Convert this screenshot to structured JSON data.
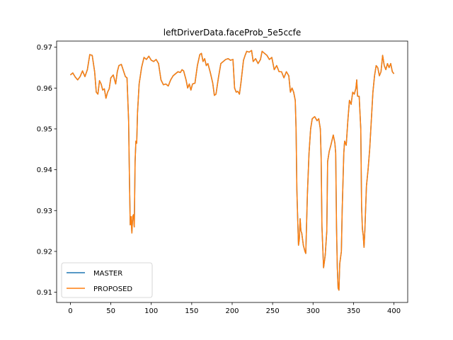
{
  "chart_data": {
    "type": "line",
    "title": "leftDriverData.faceProb_5e5ccfe",
    "xlabel": "",
    "ylabel": "",
    "xlim": [
      -17,
      417
    ],
    "ylim": [
      0.9075,
      0.9715
    ],
    "xticks": [
      0,
      50,
      100,
      150,
      200,
      250,
      300,
      350,
      400
    ],
    "yticks": [
      0.91,
      0.92,
      0.93,
      0.94,
      0.95,
      0.96,
      0.97
    ],
    "grid": false,
    "legend": {
      "position": "lower-left"
    },
    "series": [
      {
        "name": "MASTER",
        "color": "#1f77b4",
        "points": [
          [
            0,
            0.9632
          ],
          [
            3,
            0.9637
          ],
          [
            6,
            0.9627
          ],
          [
            9,
            0.962
          ],
          [
            12,
            0.9628
          ],
          [
            15,
            0.9642
          ],
          [
            18,
            0.9628
          ],
          [
            21,
            0.9645
          ],
          [
            24,
            0.9682
          ],
          [
            27,
            0.968
          ],
          [
            30,
            0.964
          ],
          [
            32,
            0.959
          ],
          [
            34,
            0.9585
          ],
          [
            36,
            0.9618
          ],
          [
            38,
            0.961
          ],
          [
            40,
            0.9595
          ],
          [
            42,
            0.9598
          ],
          [
            44,
            0.9575
          ],
          [
            46,
            0.959
          ],
          [
            48,
            0.9598
          ],
          [
            50,
            0.9625
          ],
          [
            53,
            0.9632
          ],
          [
            56,
            0.961
          ],
          [
            58,
            0.964
          ],
          [
            60,
            0.9655
          ],
          [
            63,
            0.9658
          ],
          [
            66,
            0.964
          ],
          [
            68,
            0.9628
          ],
          [
            70,
            0.9625
          ],
          [
            72,
            0.952
          ],
          [
            73,
            0.938
          ],
          [
            74,
            0.9265
          ],
          [
            75,
            0.9285
          ],
          [
            76,
            0.9245
          ],
          [
            77,
            0.9285
          ],
          [
            78,
            0.929
          ],
          [
            79,
            0.926
          ],
          [
            80,
            0.942
          ],
          [
            81,
            0.947
          ],
          [
            82,
            0.9465
          ],
          [
            83,
            0.954
          ],
          [
            85,
            0.961
          ],
          [
            88,
            0.965
          ],
          [
            91,
            0.9675
          ],
          [
            94,
            0.967
          ],
          [
            97,
            0.9678
          ],
          [
            100,
            0.9668
          ],
          [
            103,
            0.9665
          ],
          [
            106,
            0.967
          ],
          [
            109,
            0.966
          ],
          [
            112,
            0.962
          ],
          [
            115,
            0.9608
          ],
          [
            118,
            0.961
          ],
          [
            121,
            0.9605
          ],
          [
            124,
            0.962
          ],
          [
            127,
            0.963
          ],
          [
            130,
            0.9635
          ],
          [
            133,
            0.964
          ],
          [
            136,
            0.9638
          ],
          [
            138,
            0.9645
          ],
          [
            140,
            0.9642
          ],
          [
            143,
            0.962
          ],
          [
            145,
            0.96
          ],
          [
            147,
            0.961
          ],
          [
            149,
            0.9595
          ],
          [
            151,
            0.961
          ],
          [
            154,
            0.9612
          ],
          [
            157,
            0.9655
          ],
          [
            160,
            0.9682
          ],
          [
            162,
            0.9685
          ],
          [
            164,
            0.9665
          ],
          [
            166,
            0.9672
          ],
          [
            168,
            0.9655
          ],
          [
            170,
            0.966
          ],
          [
            173,
            0.9638
          ],
          [
            176,
            0.9612
          ],
          [
            178,
            0.9582
          ],
          [
            180,
            0.9585
          ],
          [
            183,
            0.9625
          ],
          [
            186,
            0.966
          ],
          [
            189,
            0.9665
          ],
          [
            192,
            0.967
          ],
          [
            195,
            0.9672
          ],
          [
            198,
            0.9668
          ],
          [
            201,
            0.967
          ],
          [
            203,
            0.96
          ],
          [
            205,
            0.959
          ],
          [
            207,
            0.9592
          ],
          [
            209,
            0.9585
          ],
          [
            211,
            0.9615
          ],
          [
            214,
            0.9668
          ],
          [
            216,
            0.968
          ],
          [
            218,
            0.969
          ],
          [
            221,
            0.9688
          ],
          [
            224,
            0.9692
          ],
          [
            226,
            0.9665
          ],
          [
            229,
            0.9672
          ],
          [
            232,
            0.966
          ],
          [
            235,
            0.967
          ],
          [
            237,
            0.969
          ],
          [
            240,
            0.9685
          ],
          [
            243,
            0.968
          ],
          [
            246,
            0.967
          ],
          [
            249,
            0.9675
          ],
          [
            252,
            0.9645
          ],
          [
            255,
            0.9655
          ],
          [
            258,
            0.964
          ],
          [
            261,
            0.964
          ],
          [
            264,
            0.9625
          ],
          [
            267,
            0.964
          ],
          [
            270,
            0.963
          ],
          [
            272,
            0.959
          ],
          [
            274,
            0.96
          ],
          [
            276,
            0.959
          ],
          [
            278,
            0.957
          ],
          [
            279,
            0.95
          ],
          [
            280,
            0.935
          ],
          [
            281,
            0.928
          ],
          [
            282,
            0.9215
          ],
          [
            283,
            0.923
          ],
          [
            284,
            0.928
          ],
          [
            285,
            0.925
          ],
          [
            286,
            0.9245
          ],
          [
            288,
            0.9215
          ],
          [
            290,
            0.92
          ],
          [
            291,
            0.9195
          ],
          [
            293,
            0.934
          ],
          [
            295,
            0.944
          ],
          [
            297,
            0.95
          ],
          [
            299,
            0.9525
          ],
          [
            302,
            0.953
          ],
          [
            305,
            0.952
          ],
          [
            307,
            0.9525
          ],
          [
            309,
            0.95
          ],
          [
            310,
            0.943
          ],
          [
            311,
            0.926
          ],
          [
            313,
            0.916
          ],
          [
            315,
            0.919
          ],
          [
            317,
            0.925
          ],
          [
            318,
            0.942
          ],
          [
            320,
            0.9445
          ],
          [
            322,
            0.946
          ],
          [
            325,
            0.9485
          ],
          [
            327,
            0.9465
          ],
          [
            328,
            0.944
          ],
          [
            329,
            0.926
          ],
          [
            330,
            0.916
          ],
          [
            331,
            0.911
          ],
          [
            332,
            0.9105
          ],
          [
            333,
            0.917
          ],
          [
            335,
            0.92
          ],
          [
            336,
            0.93
          ],
          [
            338,
            0.944
          ],
          [
            339,
            0.947
          ],
          [
            341,
            0.946
          ],
          [
            343,
            0.952
          ],
          [
            345,
            0.957
          ],
          [
            347,
            0.956
          ],
          [
            349,
            0.959
          ],
          [
            351,
            0.9585
          ],
          [
            353,
            0.96
          ],
          [
            354,
            0.962
          ],
          [
            355,
            0.958
          ],
          [
            357,
            0.958
          ],
          [
            359,
            0.95
          ],
          [
            360,
            0.931
          ],
          [
            361,
            0.9255
          ],
          [
            362,
            0.924
          ],
          [
            363,
            0.921
          ],
          [
            364,
            0.925
          ],
          [
            366,
            0.936
          ],
          [
            368,
            0.94
          ],
          [
            370,
            0.945
          ],
          [
            372,
            0.952
          ],
          [
            374,
            0.959
          ],
          [
            376,
            0.963
          ],
          [
            378,
            0.9655
          ],
          [
            380,
            0.965
          ],
          [
            382,
            0.963
          ],
          [
            384,
            0.964
          ],
          [
            386,
            0.968
          ],
          [
            388,
            0.9655
          ],
          [
            390,
            0.9645
          ],
          [
            392,
            0.966
          ],
          [
            394,
            0.965
          ],
          [
            396,
            0.966
          ],
          [
            398,
            0.964
          ],
          [
            400,
            0.9635
          ]
        ]
      },
      {
        "name": "PROPOSED",
        "color": "#ff7f0e",
        "same_as": "MASTER"
      }
    ]
  }
}
